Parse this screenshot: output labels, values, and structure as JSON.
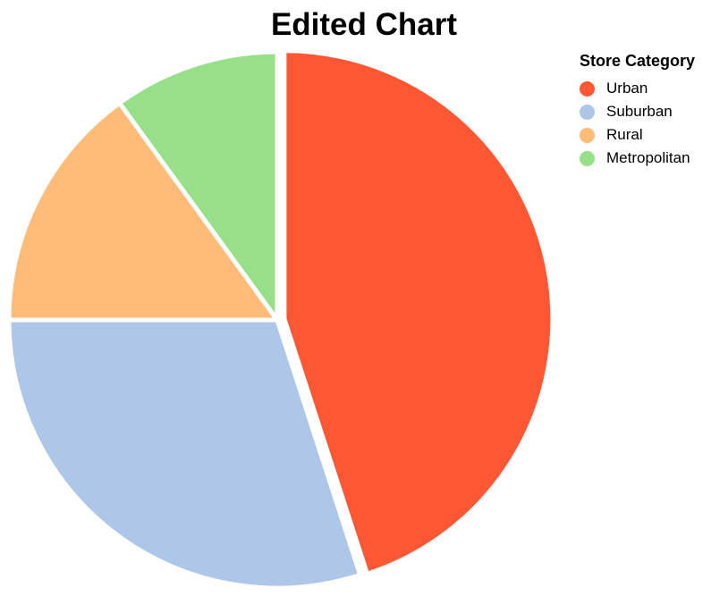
{
  "chart_data": {
    "type": "pie",
    "title": "Edited Chart",
    "legend_title": "Store Category",
    "legend_position": "top-right",
    "categories": [
      "Urban",
      "Suburban",
      "Rural",
      "Metropolitan"
    ],
    "values": [
      45,
      30,
      15,
      10
    ],
    "colors": [
      "#ff5733",
      "#aec7e8",
      "#ffbb78",
      "#98df8a"
    ],
    "exploded": "Urban"
  }
}
